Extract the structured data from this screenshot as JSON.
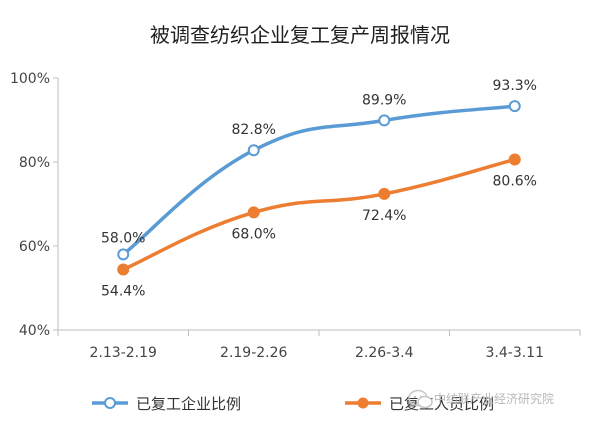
{
  "chart_data": {
    "type": "line",
    "title": "被调查纺织企业复工复产周报情况",
    "categories": [
      "2.13-2.19",
      "2.19-2.26",
      "2.26-3.4",
      "3.4-3.11"
    ],
    "ylim": [
      40,
      100
    ],
    "yticks": [
      40,
      60,
      80,
      100
    ],
    "ytick_labels": [
      "40%",
      "60%",
      "80%",
      "100%"
    ],
    "grid": false,
    "legend_position": "bottom",
    "series": [
      {
        "name": "已复工企业比例",
        "color": "#5b9bd5",
        "marker": "hollow-circle",
        "values": [
          58.0,
          82.8,
          89.9,
          93.3
        ],
        "labels": [
          "58.0%",
          "82.8%",
          "89.9%",
          "93.3%"
        ]
      },
      {
        "name": "已复工人员比例",
        "color": "#ed7d31",
        "marker": "filled-circle",
        "values": [
          54.4,
          68.0,
          72.4,
          80.6
        ],
        "labels": [
          "54.4%",
          "68.0%",
          "72.4%",
          "80.6%"
        ]
      }
    ]
  },
  "watermark": {
    "text": "中纺联产业经济研究院",
    "icon": "wechat-icon",
    "color": "#c8c8c8"
  }
}
